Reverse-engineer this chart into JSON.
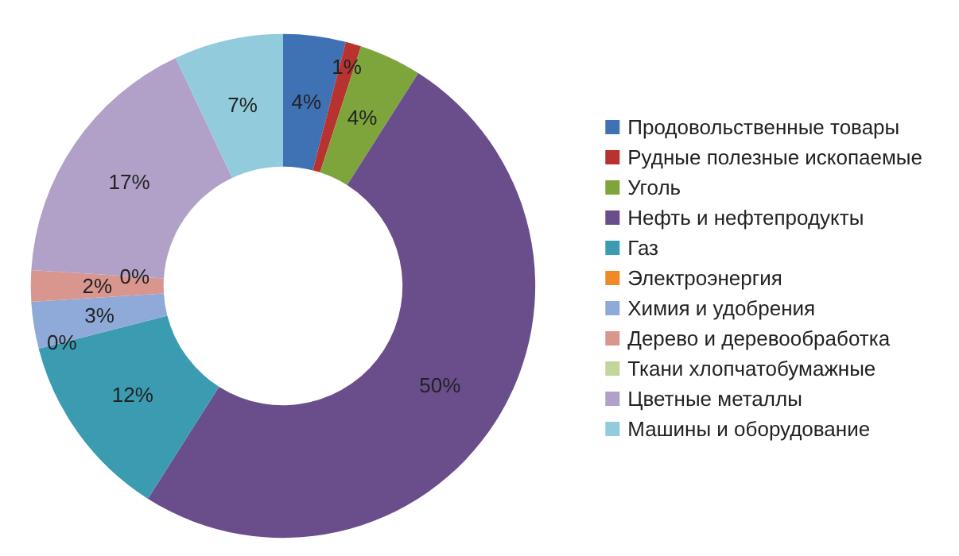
{
  "chart_data": {
    "type": "donut",
    "categories": [
      "Продовольственные товары",
      "Рудные полезные ископаемые",
      "Уголь",
      "Нефть и нефтепродукты",
      "Газ",
      "Электроэнергия",
      "Химия и удобрения",
      "Дерево и деревообработка",
      "Ткани хлопчатобумажные",
      "Цветные металлы",
      "Машины и оборудование"
    ],
    "values": [
      4,
      1,
      4,
      50,
      12,
      0,
      3,
      2,
      0,
      17,
      7
    ],
    "colors": [
      "#3f72b5",
      "#b8322f",
      "#7ea53c",
      "#6a4e8c",
      "#3a9bb1",
      "#ef8a26",
      "#8faad9",
      "#d9968f",
      "#c2d69a",
      "#b1a1c8",
      "#92cbdc"
    ],
    "value_labels": [
      "4%",
      "1%",
      "4%",
      "50%",
      "12%",
      "0%",
      "3%",
      "2%",
      "0%",
      "17%",
      "7%"
    ],
    "legend": "right"
  }
}
